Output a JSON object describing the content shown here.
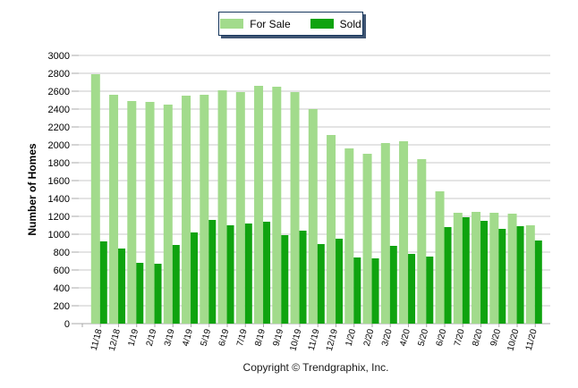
{
  "legend": {
    "items": [
      {
        "label": "For Sale"
      },
      {
        "label": "Sold"
      }
    ]
  },
  "chart_data": {
    "type": "bar",
    "title": "",
    "xlabel": "",
    "ylabel": "Number of Homes",
    "ylim": [
      0,
      3000
    ],
    "ytick_step": 200,
    "grid": true,
    "legend_position": "top-center",
    "categories": [
      "11/18",
      "12/18",
      "1/19",
      "2/19",
      "3/19",
      "4/19",
      "5/19",
      "6/19",
      "7/19",
      "8/19",
      "9/19",
      "10/19",
      "11/19",
      "12/19",
      "1/20",
      "2/20",
      "3/20",
      "4/20",
      "5/20",
      "6/20",
      "7/20",
      "8/20",
      "9/20",
      "10/20",
      "11/20"
    ],
    "series": [
      {
        "name": "For Sale",
        "color": "#A2DB8C",
        "values": [
          2790,
          2560,
          2490,
          2480,
          2450,
          2550,
          2560,
          2610,
          2590,
          2660,
          2650,
          2590,
          2400,
          2110,
          1960,
          1900,
          2020,
          2040,
          1840,
          1480,
          1240,
          1250,
          1240,
          1230,
          1100
        ]
      },
      {
        "name": "Sold",
        "color": "#0FA30F",
        "values": [
          920,
          840,
          680,
          670,
          880,
          1020,
          1160,
          1100,
          1120,
          1140,
          990,
          1040,
          890,
          950,
          740,
          730,
          870,
          780,
          750,
          1080,
          1190,
          1150,
          1060,
          1090,
          930
        ]
      }
    ]
  },
  "colors": {
    "grid": "#C9C9C9",
    "axis": "#A9A9A9",
    "legend_border": "#16365C",
    "legend_shadow": "#3F5573",
    "text": "#000000"
  },
  "footer": {
    "copyright": "Copyright © Trendgraphix, Inc."
  }
}
